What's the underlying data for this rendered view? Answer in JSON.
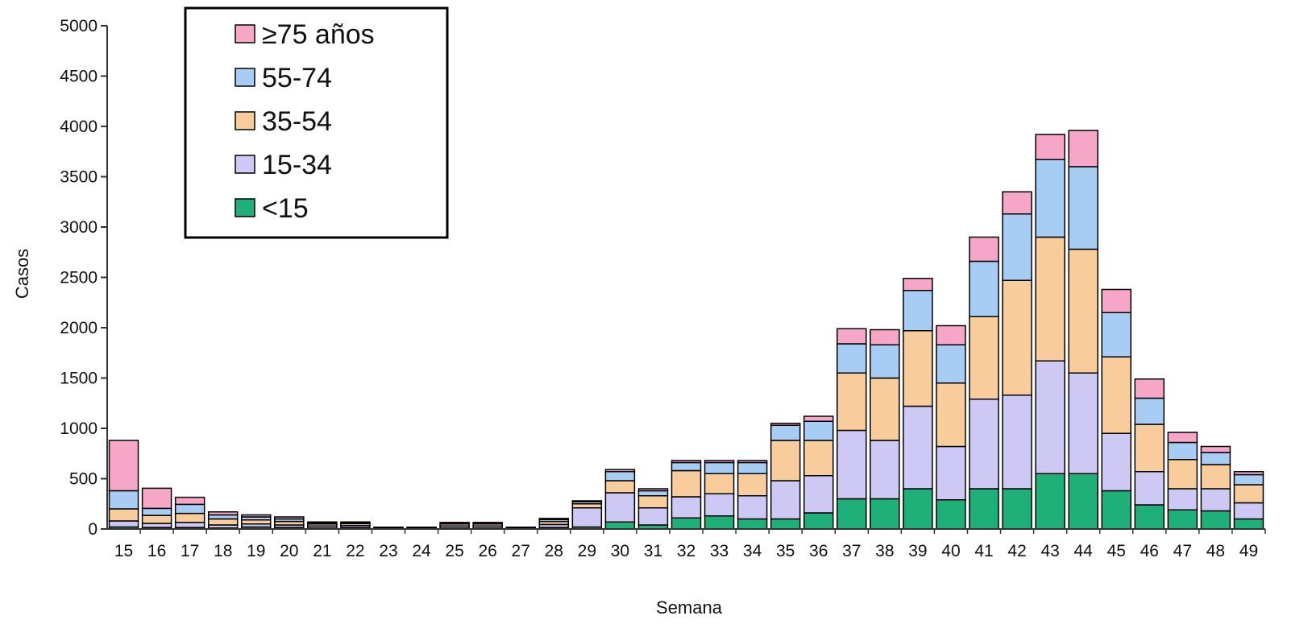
{
  "chart_data": {
    "type": "bar",
    "stacked": true,
    "xlabel": "Semana",
    "ylabel": "Casos",
    "ylim": [
      0,
      5000
    ],
    "yticks": [
      0,
      500,
      1000,
      1500,
      2000,
      2500,
      3000,
      3500,
      4000,
      4500,
      5000
    ],
    "grid": false,
    "legend_position": "top-left",
    "categories": [
      "15",
      "16",
      "17",
      "18",
      "19",
      "20",
      "21",
      "22",
      "23",
      "24",
      "25",
      "26",
      "27",
      "28",
      "29",
      "30",
      "31",
      "32",
      "33",
      "34",
      "35",
      "36",
      "37",
      "38",
      "39",
      "40",
      "41",
      "42",
      "43",
      "44",
      "45",
      "46",
      "47",
      "48",
      "49"
    ],
    "series": [
      {
        "name": "<15",
        "color": "#1fb07a",
        "values": [
          20,
          15,
          15,
          10,
          20,
          15,
          10,
          15,
          5,
          5,
          10,
          10,
          5,
          15,
          20,
          70,
          40,
          110,
          130,
          100,
          100,
          160,
          300,
          300,
          400,
          290,
          400,
          400,
          550,
          550,
          380,
          240,
          190,
          180,
          100
        ]
      },
      {
        "name": "15-34",
        "color": "#cdc8f4",
        "values": [
          60,
          40,
          50,
          30,
          30,
          25,
          20,
          20,
          5,
          5,
          20,
          20,
          5,
          30,
          190,
          290,
          170,
          210,
          220,
          230,
          380,
          370,
          680,
          580,
          820,
          530,
          890,
          930,
          1120,
          1000,
          570,
          330,
          210,
          220,
          160
        ]
      },
      {
        "name": "35-54",
        "color": "#f9cc9c",
        "values": [
          120,
          80,
          90,
          60,
          40,
          35,
          20,
          20,
          5,
          5,
          20,
          20,
          5,
          30,
          40,
          120,
          120,
          260,
          200,
          220,
          400,
          350,
          570,
          620,
          750,
          630,
          820,
          1140,
          1230,
          1230,
          760,
          470,
          290,
          240,
          180
        ]
      },
      {
        "name": "55-74",
        "color": "#a7cdf4",
        "values": [
          180,
          70,
          90,
          40,
          30,
          25,
          10,
          10,
          2,
          2,
          10,
          10,
          2,
          20,
          20,
          90,
          50,
          80,
          110,
          110,
          150,
          190,
          290,
          330,
          400,
          380,
          550,
          660,
          770,
          820,
          440,
          260,
          170,
          120,
          100
        ]
      },
      {
        "name": "≥75 años",
        "color": "#f6a6c6",
        "values": [
          500,
          200,
          70,
          30,
          20,
          20,
          10,
          5,
          1,
          1,
          5,
          5,
          1,
          10,
          10,
          20,
          20,
          20,
          20,
          20,
          20,
          50,
          150,
          150,
          120,
          190,
          240,
          220,
          250,
          360,
          230,
          190,
          100,
          60,
          30
        ]
      }
    ]
  }
}
